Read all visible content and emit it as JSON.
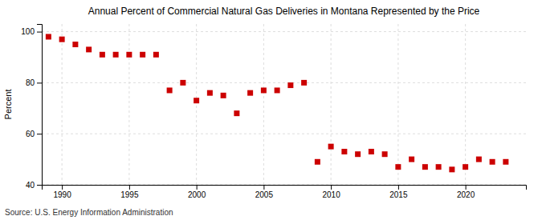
{
  "chart_data": {
    "type": "scatter",
    "title": "Annual Percent of Commercial Natural Gas Deliveries in Montana Represented by the Price",
    "y_label": "Percent",
    "source": "Source: U.S. Energy Information Administration",
    "color": "#cc0000",
    "marker": "square",
    "grid": true,
    "xlim": [
      1988.5,
      2024.5
    ],
    "ylim": [
      40,
      103
    ],
    "xticks": [
      1990,
      1995,
      2000,
      2005,
      2010,
      2015,
      2020
    ],
    "yticks": [
      40,
      60,
      80,
      100
    ],
    "x": [
      1989,
      1990,
      1991,
      1992,
      1993,
      1994,
      1995,
      1996,
      1997,
      1998,
      1999,
      2000,
      2001,
      2002,
      2003,
      2004,
      2005,
      2006,
      2007,
      2008,
      2009,
      2010,
      2011,
      2012,
      2013,
      2014,
      2015,
      2016,
      2017,
      2018,
      2019,
      2020,
      2021,
      2022,
      2023
    ],
    "values": [
      98,
      97,
      95,
      93,
      91,
      91,
      91,
      91,
      91,
      77,
      80,
      73,
      76,
      75,
      68,
      76,
      77,
      77,
      79,
      80,
      49,
      55,
      53,
      52,
      53,
      52,
      47,
      50,
      47,
      47,
      46,
      47,
      50,
      49,
      49
    ]
  }
}
